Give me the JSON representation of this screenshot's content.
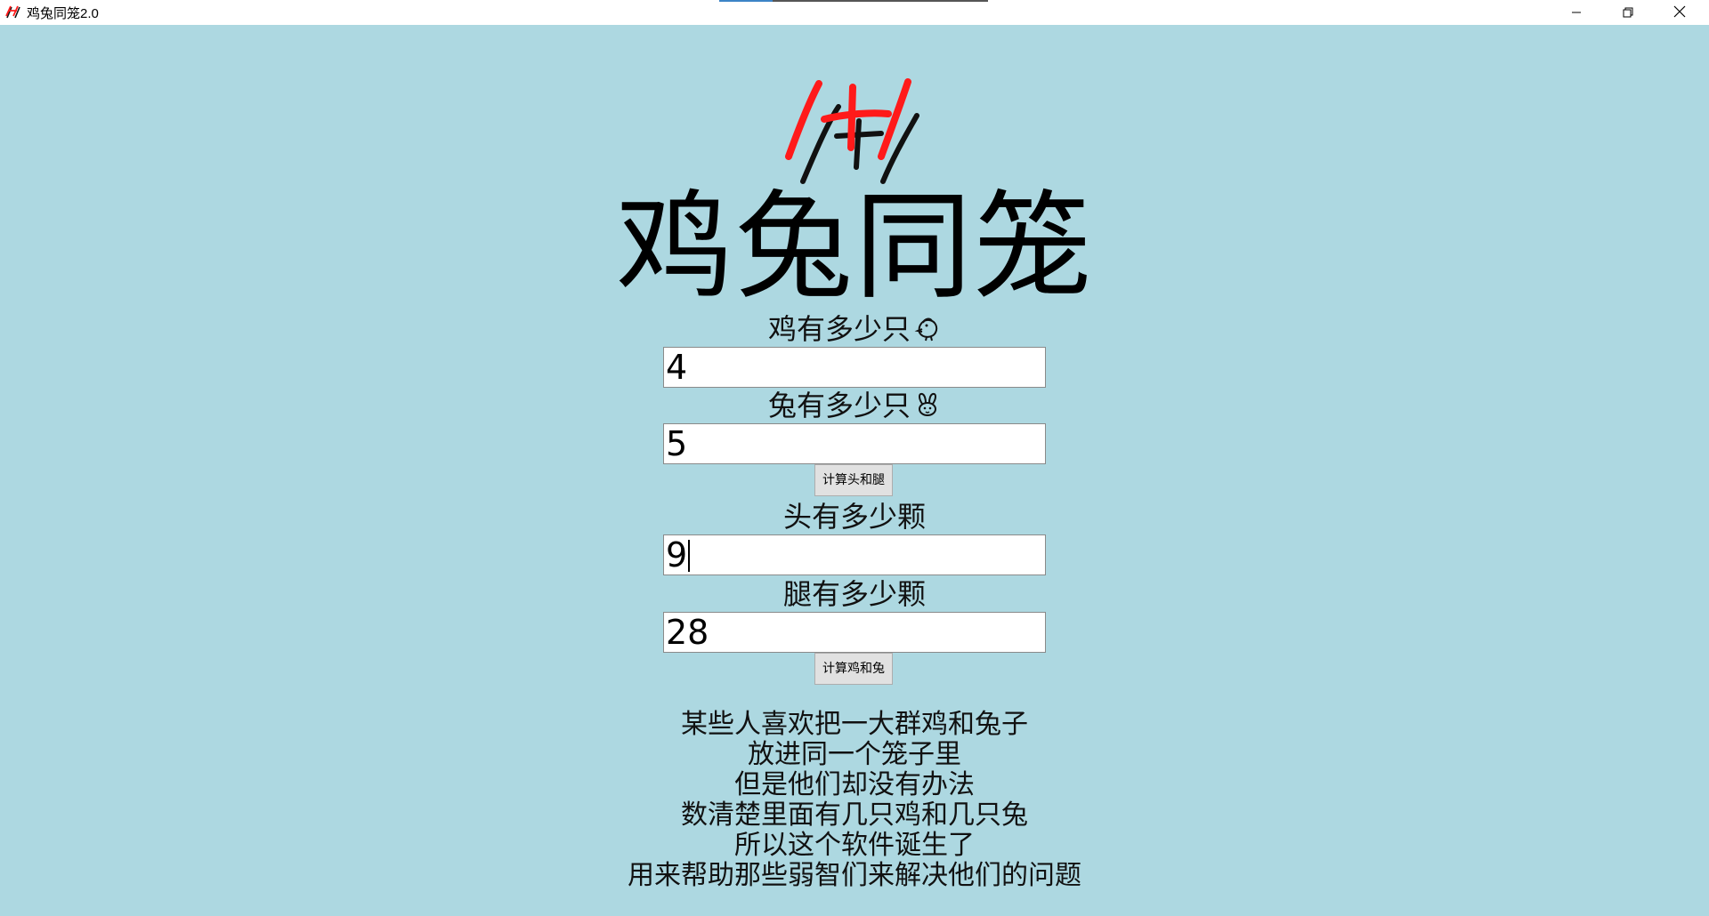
{
  "window": {
    "title": "鸡兔同笼2.0",
    "load_progress": 0.2
  },
  "app": {
    "title": "鸡兔同笼",
    "chicken_label": "鸡有多少只",
    "chicken_value": "4",
    "rabbit_label": "兔有多少只",
    "rabbit_value": "5",
    "calc_heads_legs_button": "计算头和腿",
    "heads_label": "头有多少颗",
    "heads_value": "9",
    "legs_label": "腿有多少颗",
    "legs_value": "28",
    "calc_chicken_rabbit_button": "计算鸡和兔",
    "story_lines": [
      "某些人喜欢把一大群鸡和兔子",
      "放进同一个笼子里",
      "但是他们却没有办法",
      "数清楚里面有几只鸡和几只兔",
      "所以这个软件诞生了",
      "用来帮助那些弱智们来解决他们的问题"
    ]
  },
  "icons": {
    "app": "logo-icon",
    "chicken": "chicken-icon",
    "rabbit": "rabbit-icon",
    "minimize": "minimize-icon",
    "maximize": "restore-icon",
    "close": "close-icon"
  },
  "colors": {
    "background": "#add8e1",
    "logo_red": "#ff1a1a",
    "logo_black": "#111111"
  }
}
